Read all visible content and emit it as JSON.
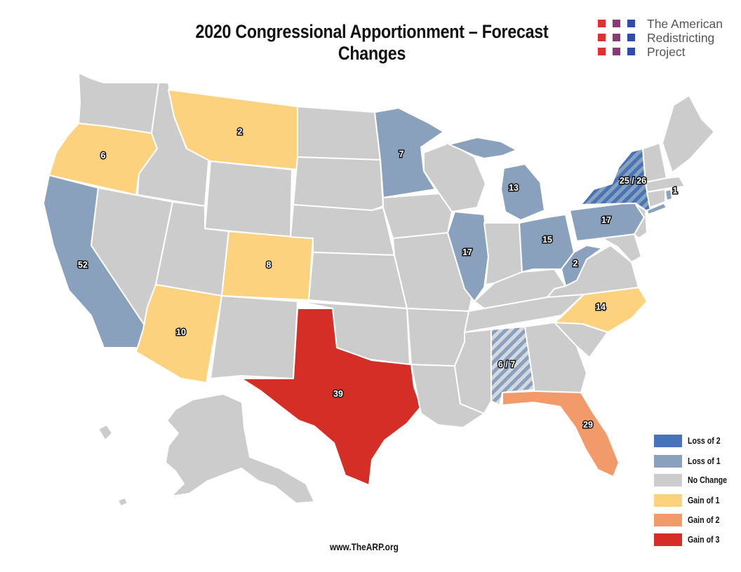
{
  "title": "2020 Congressional Apportionment – Forecast Changes",
  "logo": {
    "lines": [
      "The American",
      "Redistricting",
      "Project"
    ],
    "dot_colors": [
      "#e03131",
      "#8a3a78",
      "#2f4da8"
    ]
  },
  "colors": {
    "loss2": "#4774b8",
    "loss1": "#8aa1bd",
    "no_change": "#cccccc",
    "gain1": "#fcd27e",
    "gain2": "#f39a6a",
    "gain3": "#d42e27",
    "stripe_light": "#d4d9df"
  },
  "legend": [
    {
      "label": "Loss of 2",
      "color": "#4774b8"
    },
    {
      "label": "Loss of 1",
      "color": "#8aa1bd"
    },
    {
      "label": "No Change",
      "color": "#cccccc"
    },
    {
      "label": "Gain of 1",
      "color": "#fcd27e"
    },
    {
      "label": "Gain of 2",
      "color": "#f39a6a"
    },
    {
      "label": "Gain of 3",
      "color": "#d42e27"
    }
  ],
  "states": [
    {
      "name": "Oregon",
      "seats": "6",
      "change": "Gain of 1"
    },
    {
      "name": "Montana",
      "seats": "2",
      "change": "Gain of 1"
    },
    {
      "name": "Minnesota",
      "seats": "7",
      "change": "Loss of 1"
    },
    {
      "name": "Michigan",
      "seats": "13",
      "change": "Loss of 1"
    },
    {
      "name": "New York",
      "seats": "25 / 26",
      "change": "Loss of 1 or 2"
    },
    {
      "name": "Rhode Island",
      "seats": "1",
      "change": "Loss of 1"
    },
    {
      "name": "Pennsylvania",
      "seats": "17",
      "change": "Loss of 1"
    },
    {
      "name": "Ohio",
      "seats": "15",
      "change": "Loss of 1"
    },
    {
      "name": "Illinois",
      "seats": "17",
      "change": "Loss of 1"
    },
    {
      "name": "West Virginia",
      "seats": "2",
      "change": "Loss of 1"
    },
    {
      "name": "California",
      "seats": "52",
      "change": "Loss of 1"
    },
    {
      "name": "Colorado",
      "seats": "8",
      "change": "Gain of 1"
    },
    {
      "name": "Arizona",
      "seats": "10",
      "change": "Gain of 1"
    },
    {
      "name": "North Carolina",
      "seats": "14",
      "change": "Gain of 1"
    },
    {
      "name": "Alabama",
      "seats": "6 / 7",
      "change": "No Change or Loss of 1"
    },
    {
      "name": "Texas",
      "seats": "39",
      "change": "Gain of 3"
    },
    {
      "name": "Florida",
      "seats": "29",
      "change": "Gain of 2"
    }
  ],
  "website": "www.TheARP.org"
}
